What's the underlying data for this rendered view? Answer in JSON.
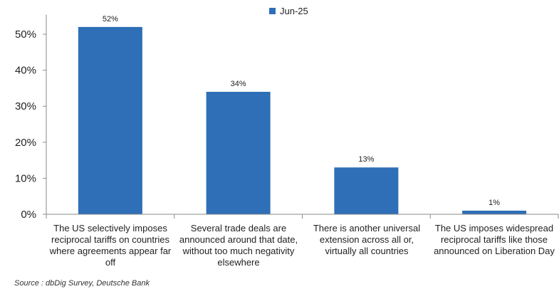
{
  "chart_data": {
    "type": "bar",
    "categories": [
      "The US selectively imposes reciprocal tariffs on countries where agreements appear far off",
      "Several trade deals are announced around that date, without too much negativity elsewhere",
      "There is another universal extension across all or, virtually all countries",
      "The US imposes widespread reciprocal tariffs like those announced on Liberation Day"
    ],
    "series": [
      {
        "name": "Jun-25",
        "values": [
          52,
          34,
          13,
          1
        ],
        "color": "#2e6fb7"
      }
    ],
    "data_labels": [
      "52%",
      "34%",
      "13%",
      "1%"
    ],
    "yticks": [
      "0%",
      "10%",
      "20%",
      "30%",
      "40%",
      "50%"
    ],
    "ylim": [
      0,
      55
    ],
    "legend": "top-center",
    "grid": false
  },
  "legend_label": "Jun-25",
  "source": "Source : dbDig Survey, Deutsche Bank"
}
